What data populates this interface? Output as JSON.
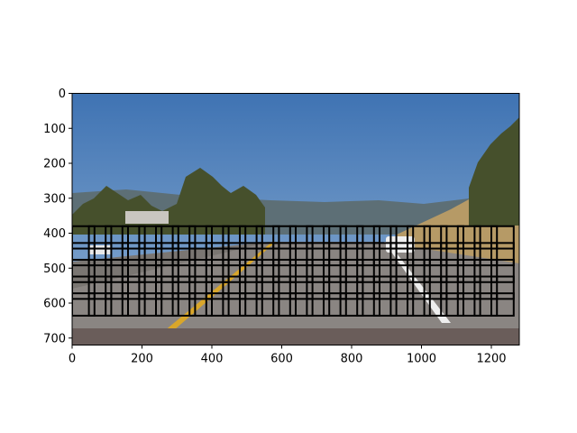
{
  "chart_data": {
    "type": "image-grid",
    "title": "",
    "xlabel": "",
    "ylabel": "",
    "xlim": [
      0,
      1280
    ],
    "ylim": [
      720,
      0
    ],
    "x_ticks": [
      0,
      200,
      400,
      600,
      800,
      1000,
      1200
    ],
    "y_ticks": [
      0,
      100,
      200,
      300,
      400,
      500,
      600,
      700
    ],
    "grid_windows": {
      "x_start": 0,
      "x_step": 48,
      "columns": 26,
      "window_size": 64,
      "y_starts": [
        380,
        428,
        476,
        524,
        572
      ],
      "box_color": "#000000"
    }
  },
  "scene_colors": {
    "sky_top": "#3f73b3",
    "sky_bottom": "#8fb0d3",
    "hills": "#5d6f76",
    "trees": "#46502c",
    "road": "#8a8582",
    "lane_yellow": "#d9a62a",
    "lane_white": "#eeeeee",
    "grass": "#b69a66"
  }
}
